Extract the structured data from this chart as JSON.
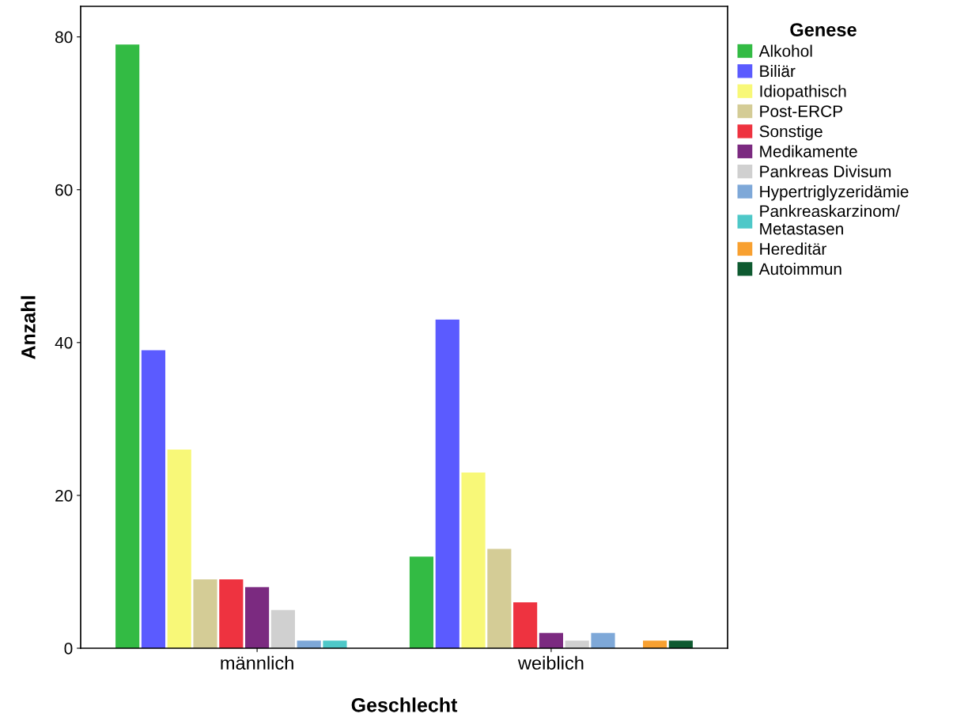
{
  "chart_data": {
    "type": "bar",
    "xlabel": "Geschlecht",
    "ylabel": "Anzahl",
    "legend_title": "Genese",
    "categories": [
      "männlich",
      "weiblich"
    ],
    "series": [
      {
        "name": "Alkohol",
        "color": "#33bb44",
        "values": [
          79,
          12
        ]
      },
      {
        "name": "Biliär",
        "color": "#5b5bff",
        "values": [
          39,
          43
        ]
      },
      {
        "name": "Idiopathisch",
        "color": "#f8f878",
        "values": [
          26,
          23
        ]
      },
      {
        "name": "Post-ERCP",
        "color": "#d4cc96",
        "values": [
          9,
          13
        ]
      },
      {
        "name": "Sonstige",
        "color": "#ee3340",
        "values": [
          9,
          6
        ]
      },
      {
        "name": "Medikamente",
        "color": "#7b2a80",
        "values": [
          8,
          2
        ]
      },
      {
        "name": "Pankreas Divisum",
        "color": "#d0d0d0",
        "values": [
          5,
          1
        ]
      },
      {
        "name": "Hypertriglyzeridämie",
        "color": "#7ea8d8",
        "values": [
          1,
          2
        ]
      },
      {
        "name": "Pankreaskarzinom/\nMetastasen",
        "color": "#4ec8c8",
        "values": [
          1,
          0
        ]
      },
      {
        "name": "Hereditär",
        "color": "#f8a030",
        "values": [
          0,
          1
        ]
      },
      {
        "name": "Autoimmun",
        "color": "#0e5a30",
        "values": [
          0,
          1
        ]
      }
    ],
    "ylim": [
      0,
      84
    ],
    "yticks": [
      0,
      20,
      40,
      60,
      80
    ],
    "grid": false,
    "legend": "right"
  }
}
